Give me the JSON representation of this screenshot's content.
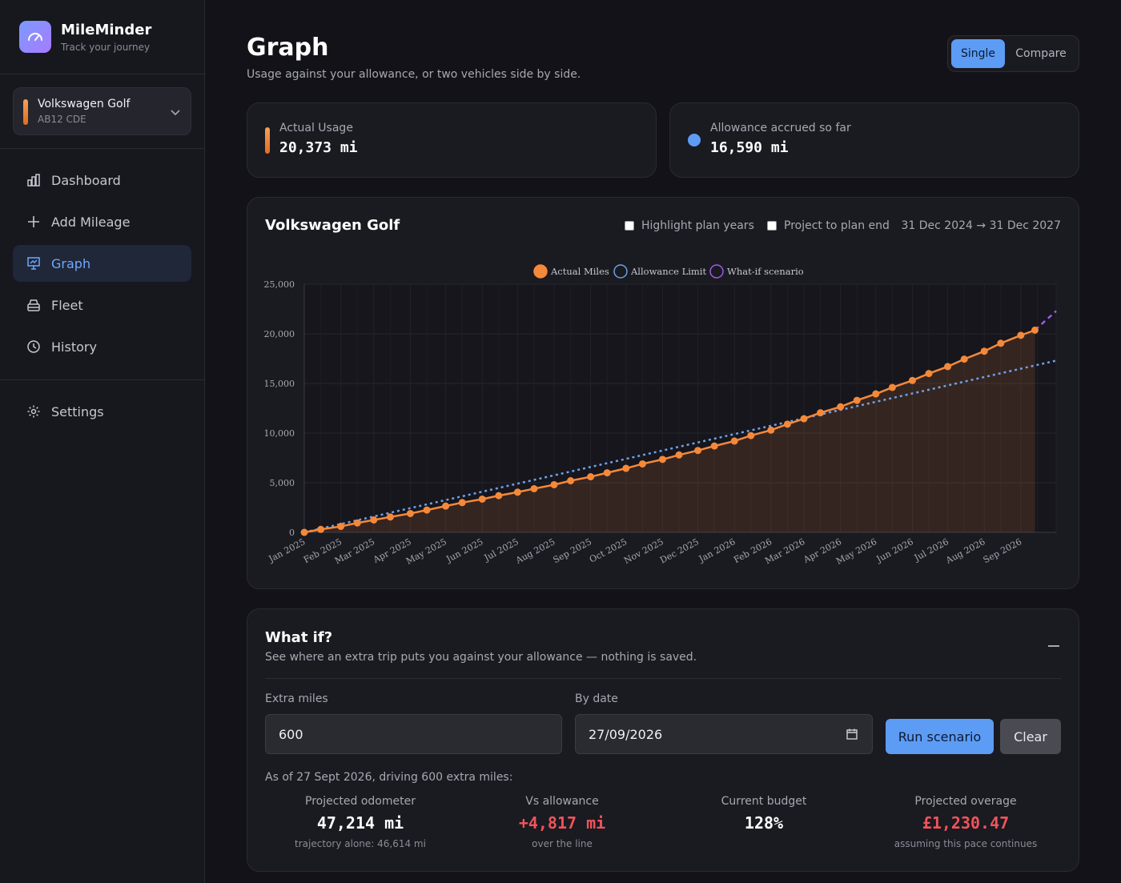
{
  "brand": {
    "name": "MileMinder",
    "tagline": "Track your journey"
  },
  "vehicle_selector": {
    "name": "Volkswagen Golf",
    "plate": "AB12 CDE"
  },
  "nav": {
    "items": [
      {
        "label": "Dashboard",
        "icon": "bar-chart-icon",
        "active": false
      },
      {
        "label": "Add Mileage",
        "icon": "plus-icon",
        "active": false
      },
      {
        "label": "Graph",
        "icon": "presentation-chart-icon",
        "active": true
      },
      {
        "label": "Fleet",
        "icon": "car-icon",
        "active": false
      },
      {
        "label": "History",
        "icon": "clock-icon",
        "active": false
      }
    ],
    "settings": {
      "label": "Settings",
      "icon": "gear-icon"
    }
  },
  "header": {
    "title": "Graph",
    "subtitle": "Usage against your allowance, or two vehicles side by side.",
    "mode": {
      "single": "Single",
      "compare": "Compare",
      "selected": "Single"
    }
  },
  "stats": {
    "actual": {
      "label": "Actual Usage",
      "value": "20,373 mi",
      "color": "#f08a38"
    },
    "allowance": {
      "label": "Allowance accrued so far",
      "value": "16,590 mi",
      "color": "#5d9cf5"
    }
  },
  "chart_card": {
    "title": "Volkswagen Golf",
    "highlight_label": "Highlight plan years",
    "project_label": "Project to plan end",
    "range": "31 Dec 2024 → 31 Dec 2027"
  },
  "chart_data": {
    "type": "line",
    "title": "",
    "xlabel": "",
    "ylabel": "",
    "ylim": [
      0,
      25000
    ],
    "yticks": [
      0,
      5000,
      10000,
      15000,
      20000,
      25000
    ],
    "ytick_labels": [
      "0",
      "5,000",
      "10,000",
      "15,000",
      "20,000",
      "25,000"
    ],
    "x_labels": [
      "Jan 2025",
      "Feb 2025",
      "Mar 2025",
      "Apr 2025",
      "May 2025",
      "Jun 2025",
      "Jul 2025",
      "Aug 2025",
      "Sep 2025",
      "Oct 2025",
      "Nov 2025",
      "Dec 2025",
      "Jan 2026",
      "Feb 2026",
      "Mar 2026",
      "Apr 2026",
      "May 2026",
      "Jun 2026",
      "Jul 2026",
      "Aug 2026",
      "Sep 2026"
    ],
    "legend_position": "top",
    "grid": true,
    "series": [
      {
        "name": "Actual Miles",
        "color": "#f5893a",
        "style": "solid-with-markers-and-area",
        "x": [
          "2025-01-01",
          "2025-01-15",
          "2025-02-01",
          "2025-02-15",
          "2025-03-01",
          "2025-03-15",
          "2025-04-01",
          "2025-04-15",
          "2025-05-01",
          "2025-05-15",
          "2025-06-01",
          "2025-06-15",
          "2025-07-01",
          "2025-07-15",
          "2025-08-01",
          "2025-08-15",
          "2025-09-01",
          "2025-09-15",
          "2025-10-01",
          "2025-10-15",
          "2025-11-01",
          "2025-11-15",
          "2025-12-01",
          "2025-12-15",
          "2026-01-01",
          "2026-01-15",
          "2026-02-01",
          "2026-02-15",
          "2026-03-01",
          "2026-03-15",
          "2026-04-01",
          "2026-04-15",
          "2026-05-01",
          "2026-05-15",
          "2026-06-01",
          "2026-06-15",
          "2026-07-01",
          "2026-07-15",
          "2026-08-01",
          "2026-08-15",
          "2026-09-01",
          "2026-09-13"
        ],
        "values": [
          0,
          300,
          600,
          950,
          1250,
          1550,
          1900,
          2250,
          2650,
          3000,
          3350,
          3700,
          4050,
          4400,
          4800,
          5200,
          5600,
          6000,
          6450,
          6900,
          7350,
          7800,
          8250,
          8700,
          9200,
          9750,
          10300,
          10900,
          11450,
          12050,
          12650,
          13300,
          13950,
          14600,
          15300,
          16000,
          16700,
          17450,
          18250,
          19050,
          19850,
          20373
        ]
      },
      {
        "name": "Allowance Limit",
        "color": "#6ea0e8",
        "style": "dotted",
        "x": [
          "2025-01-01",
          "2026-10-01"
        ],
        "values": [
          0,
          17300
        ]
      },
      {
        "name": "What-if scenario",
        "color": "#a05be6",
        "style": "dashed",
        "x": [
          "2026-09-13",
          "2026-10-01"
        ],
        "values": [
          20373,
          22300
        ]
      }
    ]
  },
  "whatif": {
    "title": "What if?",
    "subtitle": "See where an extra trip puts you against your allowance — nothing is saved.",
    "extra_miles_label": "Extra miles",
    "extra_miles_value": "600",
    "by_date_label": "By date",
    "by_date_value": "27/09/2026",
    "run_label": "Run scenario",
    "clear_label": "Clear",
    "as_of": "As of 27 Sept 2026, driving 600 extra miles:",
    "results": [
      {
        "label": "Projected odometer",
        "value": "47,214 mi",
        "note": "trajectory alone: 46,614 mi",
        "alert": false
      },
      {
        "label": "Vs allowance",
        "value": "+4,817 mi",
        "note": "over the line",
        "alert": true
      },
      {
        "label": "Current budget",
        "value": "128%",
        "note": "",
        "alert": false
      },
      {
        "label": "Projected overage",
        "value": "£1,230.47",
        "note": "assuming this pace continues",
        "alert": true
      }
    ]
  }
}
